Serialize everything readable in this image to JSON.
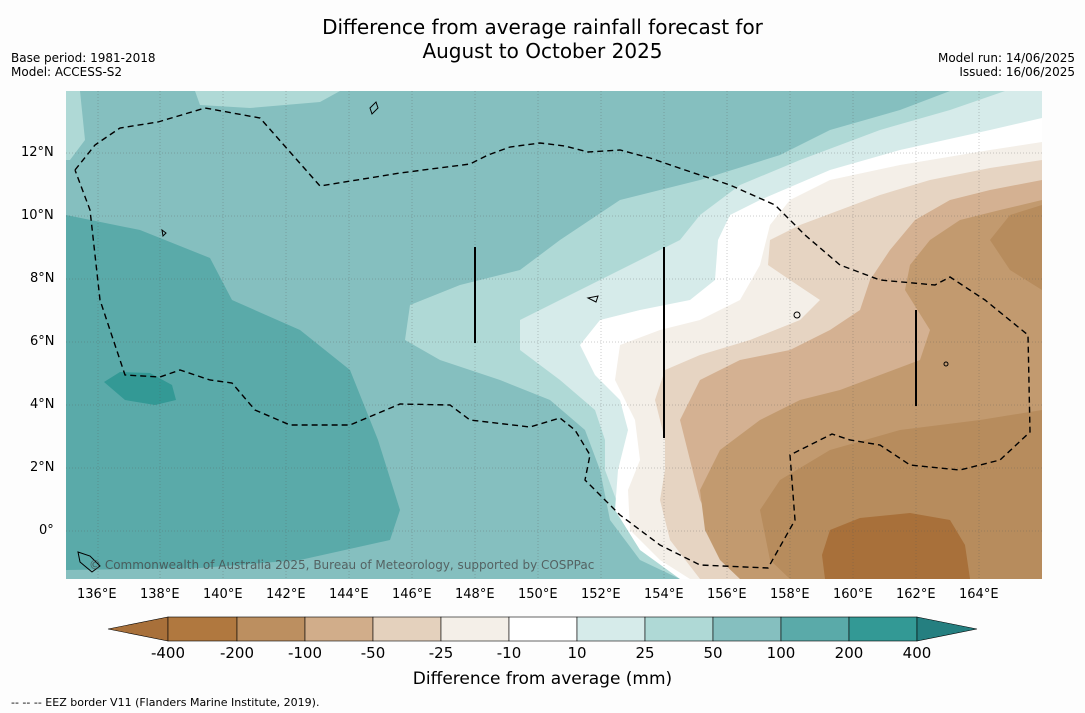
{
  "title_line1": "Difference from average rainfall forecast for",
  "title_line2": "August to October 2025",
  "meta_left": [
    "Base period: 1981-2018",
    "Model: ACCESS-S2"
  ],
  "meta_right": [
    "Model run: 14/06/2025",
    "Issued: 16/06/2025"
  ],
  "copyright": "© Commonwealth of Australia 2025, Bureau of Meteorology, supported by COSPPac",
  "x_ticks": [
    "136°E",
    "138°E",
    "140°E",
    "142°E",
    "144°E",
    "146°E",
    "148°E",
    "150°E",
    "152°E",
    "154°E",
    "156°E",
    "158°E",
    "160°E",
    "162°E",
    "164°E"
  ],
  "y_ticks": [
    "12°N",
    "10°N",
    "8°N",
    "6°N",
    "4°N",
    "2°N",
    "0°"
  ],
  "colorbar": {
    "title": "Difference from average (mm)",
    "labels": [
      "-400",
      "-200",
      "-100",
      "-50",
      "-25",
      "-10",
      "10",
      "25",
      "50",
      "100",
      "200",
      "400"
    ],
    "colors": [
      "#a8703a",
      "#b78c5d",
      "#c29a6f",
      "#d4b192",
      "#e6d4c2",
      "#f4efe8",
      "#ffffff",
      "#d6ebea",
      "#afd9d6",
      "#85bfbf",
      "#5aaaa9",
      "#339995",
      "#257f80"
    ]
  },
  "footnote": "--  --  -- EEZ border V11 (Flanders Marine Institute, 2019)."
}
